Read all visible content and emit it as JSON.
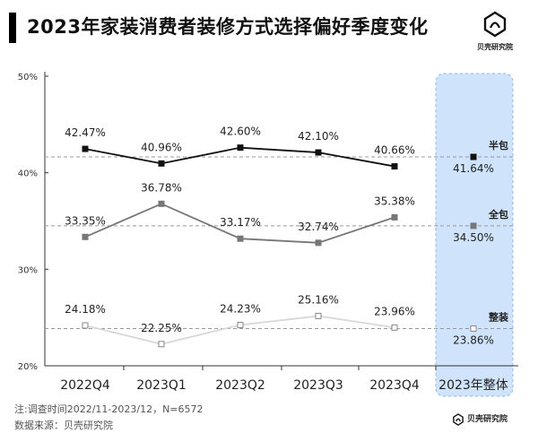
{
  "header": {
    "title": "2023年家装消费者装修方式选择偏好季度变化",
    "logo_text": "贝壳研究院",
    "logo_icon": "beike-shell-logo-icon"
  },
  "footer": {
    "note": "注:调查时间2022/11-2023/12，N=6572",
    "source": "数据来源：贝壳研究院",
    "logo_text": "贝壳研究院"
  },
  "chart_data": {
    "type": "line",
    "categories": [
      "2022Q4",
      "2023Q1",
      "2023Q2",
      "2023Q3",
      "2023Q4"
    ],
    "annual_category": "2023年整体",
    "y_ticks": [
      "20%",
      "30%",
      "40%",
      "50%"
    ],
    "ylim": [
      20,
      50
    ],
    "grid": false,
    "series": [
      {
        "name": "半包",
        "values": [
          42.47,
          40.96,
          42.6,
          42.1,
          40.66
        ],
        "annual": 41.64,
        "labels": [
          "42.47%",
          "40.96%",
          "42.60%",
          "42.10%",
          "40.66%"
        ],
        "annual_label": "41.64%",
        "color": "#111111",
        "marker_fill": "#111111"
      },
      {
        "name": "全包",
        "values": [
          33.35,
          36.78,
          33.17,
          32.74,
          35.38
        ],
        "annual": 34.5,
        "labels": [
          "33.35%",
          "36.78%",
          "33.17%",
          "32.74%",
          "35.38%"
        ],
        "annual_label": "34.50%",
        "color": "#777777",
        "marker_fill": "#777777"
      },
      {
        "name": "整装",
        "values": [
          24.18,
          22.25,
          24.23,
          25.16,
          23.96
        ],
        "annual": 23.86,
        "labels": [
          "24.18%",
          "22.25%",
          "24.23%",
          "25.16%",
          "23.96%"
        ],
        "annual_label": "23.86%",
        "color": "#d8d8d8",
        "marker_fill": "#ffffff"
      }
    ],
    "highlight_color": "#cfe3fb"
  }
}
